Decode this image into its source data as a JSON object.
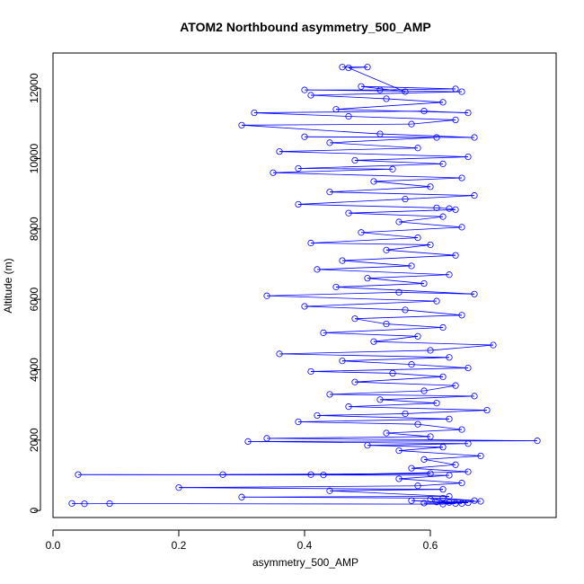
{
  "chart_data": {
    "type": "line",
    "title": "ATOM2 Northbound asymmetry_500_AMP",
    "xlabel": "asymmetry_500_AMP",
    "ylabel": "Altitude (m)",
    "xlim": [
      0.0,
      0.8
    ],
    "ylim": [
      -200,
      13000
    ],
    "x_ticks": [
      0.0,
      0.2,
      0.4,
      0.6
    ],
    "y_ticks": [
      0,
      2000,
      4000,
      6000,
      8000,
      10000,
      12000
    ],
    "markers": "open-circle",
    "grid": false,
    "legend": "none",
    "series": [
      {
        "color": "#0000ff",
        "points": [
          [
            0.03,
            200
          ],
          [
            0.05,
            190
          ],
          [
            0.09,
            195
          ],
          [
            0.62,
            180
          ],
          [
            0.64,
            200
          ],
          [
            0.59,
            210
          ],
          [
            0.66,
            220
          ],
          [
            0.61,
            240
          ],
          [
            0.68,
            260
          ],
          [
            0.63,
            230
          ],
          [
            0.57,
            280
          ],
          [
            0.65,
            200
          ],
          [
            0.6,
            320
          ],
          [
            0.67,
            280
          ],
          [
            0.62,
            350
          ],
          [
            0.3,
            380
          ],
          [
            0.63,
            400
          ],
          [
            0.44,
            560
          ],
          [
            0.62,
            600
          ],
          [
            0.2,
            650
          ],
          [
            0.58,
            700
          ],
          [
            0.65,
            780
          ],
          [
            0.55,
            900
          ],
          [
            0.63,
            1000
          ],
          [
            0.04,
            1020
          ],
          [
            0.41,
            1020
          ],
          [
            0.27,
            1020
          ],
          [
            0.6,
            1050
          ],
          [
            0.43,
            1010
          ],
          [
            0.66,
            1100
          ],
          [
            0.57,
            1200
          ],
          [
            0.64,
            1300
          ],
          [
            0.59,
            1450
          ],
          [
            0.68,
            1550
          ],
          [
            0.55,
            1700
          ],
          [
            0.62,
            1800
          ],
          [
            0.5,
            1850
          ],
          [
            0.66,
            1900
          ],
          [
            0.31,
            1960
          ],
          [
            0.77,
            1980
          ],
          [
            0.34,
            2050
          ],
          [
            0.6,
            2100
          ],
          [
            0.53,
            2200
          ],
          [
            0.65,
            2300
          ],
          [
            0.58,
            2450
          ],
          [
            0.39,
            2520
          ],
          [
            0.63,
            2600
          ],
          [
            0.42,
            2700
          ],
          [
            0.56,
            2750
          ],
          [
            0.69,
            2850
          ],
          [
            0.47,
            2950
          ],
          [
            0.61,
            3050
          ],
          [
            0.52,
            3150
          ],
          [
            0.67,
            3250
          ],
          [
            0.44,
            3300
          ],
          [
            0.59,
            3400
          ],
          [
            0.64,
            3550
          ],
          [
            0.48,
            3650
          ],
          [
            0.62,
            3800
          ],
          [
            0.54,
            3900
          ],
          [
            0.41,
            3950
          ],
          [
            0.66,
            4050
          ],
          [
            0.57,
            4150
          ],
          [
            0.46,
            4250
          ],
          [
            0.63,
            4350
          ],
          [
            0.36,
            4450
          ],
          [
            0.6,
            4550
          ],
          [
            0.7,
            4700
          ],
          [
            0.51,
            4800
          ],
          [
            0.58,
            4950
          ],
          [
            0.43,
            5050
          ],
          [
            0.62,
            5200
          ],
          [
            0.53,
            5300
          ],
          [
            0.48,
            5450
          ],
          [
            0.65,
            5550
          ],
          [
            0.56,
            5700
          ],
          [
            0.4,
            5800
          ],
          [
            0.61,
            5950
          ],
          [
            0.34,
            6100
          ],
          [
            0.55,
            6200
          ],
          [
            0.67,
            6150
          ],
          [
            0.45,
            6350
          ],
          [
            0.59,
            6450
          ],
          [
            0.5,
            6600
          ],
          [
            0.63,
            6700
          ],
          [
            0.42,
            6850
          ],
          [
            0.57,
            6950
          ],
          [
            0.46,
            7100
          ],
          [
            0.64,
            7250
          ],
          [
            0.53,
            7400
          ],
          [
            0.6,
            7550
          ],
          [
            0.41,
            7600
          ],
          [
            0.58,
            7750
          ],
          [
            0.49,
            7900
          ],
          [
            0.65,
            8050
          ],
          [
            0.55,
            8200
          ],
          [
            0.62,
            8350
          ],
          [
            0.47,
            8450
          ],
          [
            0.64,
            8550
          ],
          [
            0.63,
            8580
          ],
          [
            0.61,
            8600
          ],
          [
            0.39,
            8700
          ],
          [
            0.56,
            8850
          ],
          [
            0.67,
            8950
          ],
          [
            0.44,
            9050
          ],
          [
            0.6,
            9200
          ],
          [
            0.51,
            9350
          ],
          [
            0.65,
            9450
          ],
          [
            0.35,
            9600
          ],
          [
            0.54,
            9700
          ],
          [
            0.39,
            9720
          ],
          [
            0.62,
            9850
          ],
          [
            0.48,
            9950
          ],
          [
            0.66,
            10050
          ],
          [
            0.36,
            10200
          ],
          [
            0.58,
            10300
          ],
          [
            0.44,
            10450
          ],
          [
            0.61,
            10600
          ],
          [
            0.4,
            10620
          ],
          [
            0.67,
            10600
          ],
          [
            0.52,
            10700
          ],
          [
            0.3,
            10950
          ],
          [
            0.57,
            10980
          ],
          [
            0.64,
            11100
          ],
          [
            0.47,
            11200
          ],
          [
            0.32,
            11300
          ],
          [
            0.59,
            11350
          ],
          [
            0.66,
            11300
          ],
          [
            0.45,
            11400
          ],
          [
            0.62,
            11600
          ],
          [
            0.53,
            11700
          ],
          [
            0.41,
            11800
          ],
          [
            0.65,
            11900
          ],
          [
            0.4,
            11950
          ],
          [
            0.52,
            11950
          ],
          [
            0.64,
            11980
          ],
          [
            0.49,
            12050
          ],
          [
            0.56,
            11900
          ],
          [
            0.47,
            12580
          ],
          [
            0.5,
            12600
          ],
          [
            0.46,
            12600
          ]
        ]
      }
    ]
  }
}
